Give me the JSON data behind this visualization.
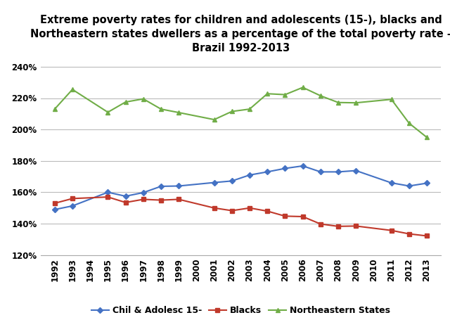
{
  "title": "Extreme poverty rates for children and adolescents (15-), blacks and\nNortheastern states dwellers as a percentage of the total poverty rate -\nBrazil 1992-2013",
  "ylim": [
    1.2,
    2.45
  ],
  "yticks": [
    1.2,
    1.4,
    1.6,
    1.8,
    2.0,
    2.2,
    2.4
  ],
  "series": {
    "children": {
      "label": "Chil & Adolesc 15-",
      "color": "#4472C4",
      "marker": "D",
      "years": [
        1992,
        1993,
        1995,
        1996,
        1997,
        1998,
        1999,
        2001,
        2002,
        2003,
        2004,
        2005,
        2006,
        2007,
        2008,
        2009,
        2011,
        2012,
        2013
      ],
      "values": [
        1.49,
        1.513,
        1.6,
        1.575,
        1.598,
        1.638,
        1.64,
        1.662,
        1.672,
        1.71,
        1.73,
        1.752,
        1.768,
        1.73,
        1.73,
        1.738,
        1.66,
        1.64,
        1.658
      ]
    },
    "blacks": {
      "label": "Blacks",
      "color": "#C0392B",
      "marker": "s",
      "years": [
        1992,
        1993,
        1995,
        1996,
        1997,
        1998,
        1999,
        2001,
        2002,
        2003,
        2004,
        2005,
        2006,
        2007,
        2008,
        2009,
        2011,
        2012,
        2013
      ],
      "values": [
        1.53,
        1.56,
        1.57,
        1.535,
        1.555,
        1.55,
        1.555,
        1.5,
        1.483,
        1.5,
        1.48,
        1.448,
        1.445,
        1.398,
        1.383,
        1.385,
        1.357,
        1.335,
        1.322
      ]
    },
    "northeastern": {
      "label": "Northeastern States",
      "color": "#70AD47",
      "marker": "^",
      "years": [
        1992,
        1993,
        1995,
        1996,
        1997,
        1998,
        1999,
        2001,
        2002,
        2003,
        2004,
        2005,
        2006,
        2007,
        2008,
        2009,
        2011,
        2012,
        2013
      ],
      "values": [
        2.13,
        2.255,
        2.11,
        2.175,
        2.195,
        2.13,
        2.108,
        2.063,
        2.115,
        2.13,
        2.228,
        2.222,
        2.268,
        2.215,
        2.172,
        2.17,
        2.192,
        2.04,
        1.95
      ]
    }
  },
  "background_color": "#FFFFFF",
  "grid_color": "#BBBBBB",
  "title_fontsize": 10.5,
  "legend_fontsize": 9,
  "tick_fontsize": 8.5,
  "xtick_years": [
    1992,
    1993,
    1994,
    1995,
    1996,
    1997,
    1998,
    1999,
    2000,
    2001,
    2002,
    2003,
    2004,
    2005,
    2006,
    2007,
    2008,
    2009,
    2010,
    2011,
    2012,
    2013
  ],
  "xlim": [
    1991.2,
    2013.8
  ]
}
